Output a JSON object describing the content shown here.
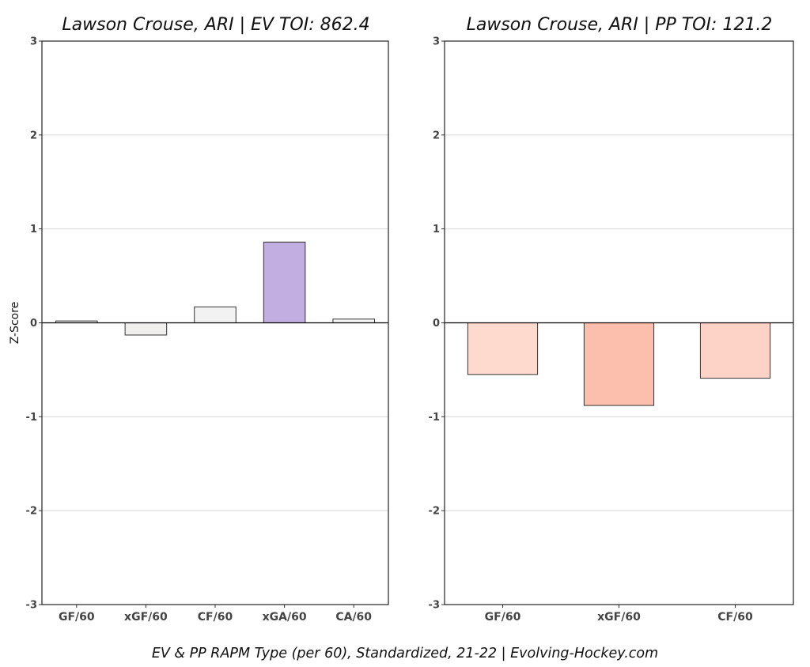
{
  "chart_data": [
    {
      "type": "bar",
      "title": "Lawson Crouse, ARI  |  EV TOI: 862.4",
      "ylabel": "Z-Score",
      "xlabel": "",
      "ylim": [
        -3,
        3
      ],
      "yticks": [
        3,
        2,
        1,
        0,
        -1,
        -2,
        -3
      ],
      "grid": true,
      "categories": [
        "GF/60",
        "xGF/60",
        "CF/60",
        "xGA/60",
        "CA/60"
      ],
      "values": [
        0.02,
        -0.13,
        0.17,
        0.86,
        0.04
      ],
      "colors": [
        "#f3f3f3",
        "#f1eeee",
        "#f2f2f2",
        "#c2aee0",
        "#f3f3f3"
      ]
    },
    {
      "type": "bar",
      "title": "Lawson Crouse, ARI  |  PP TOI: 121.2",
      "ylabel": "",
      "xlabel": "",
      "ylim": [
        -3,
        3
      ],
      "yticks": [
        3,
        2,
        1,
        0,
        -1,
        -2,
        -3
      ],
      "grid": true,
      "categories": [
        "GF/60",
        "xGF/60",
        "CF/60"
      ],
      "values": [
        -0.55,
        -0.88,
        -0.59
      ],
      "colors": [
        "#fdd9ce",
        "#fcbfad",
        "#fdd3c7"
      ]
    }
  ],
  "footer": "EV & PP RAPM Type (per 60), Standardized, 21-22    |    Evolving-Hockey.com"
}
